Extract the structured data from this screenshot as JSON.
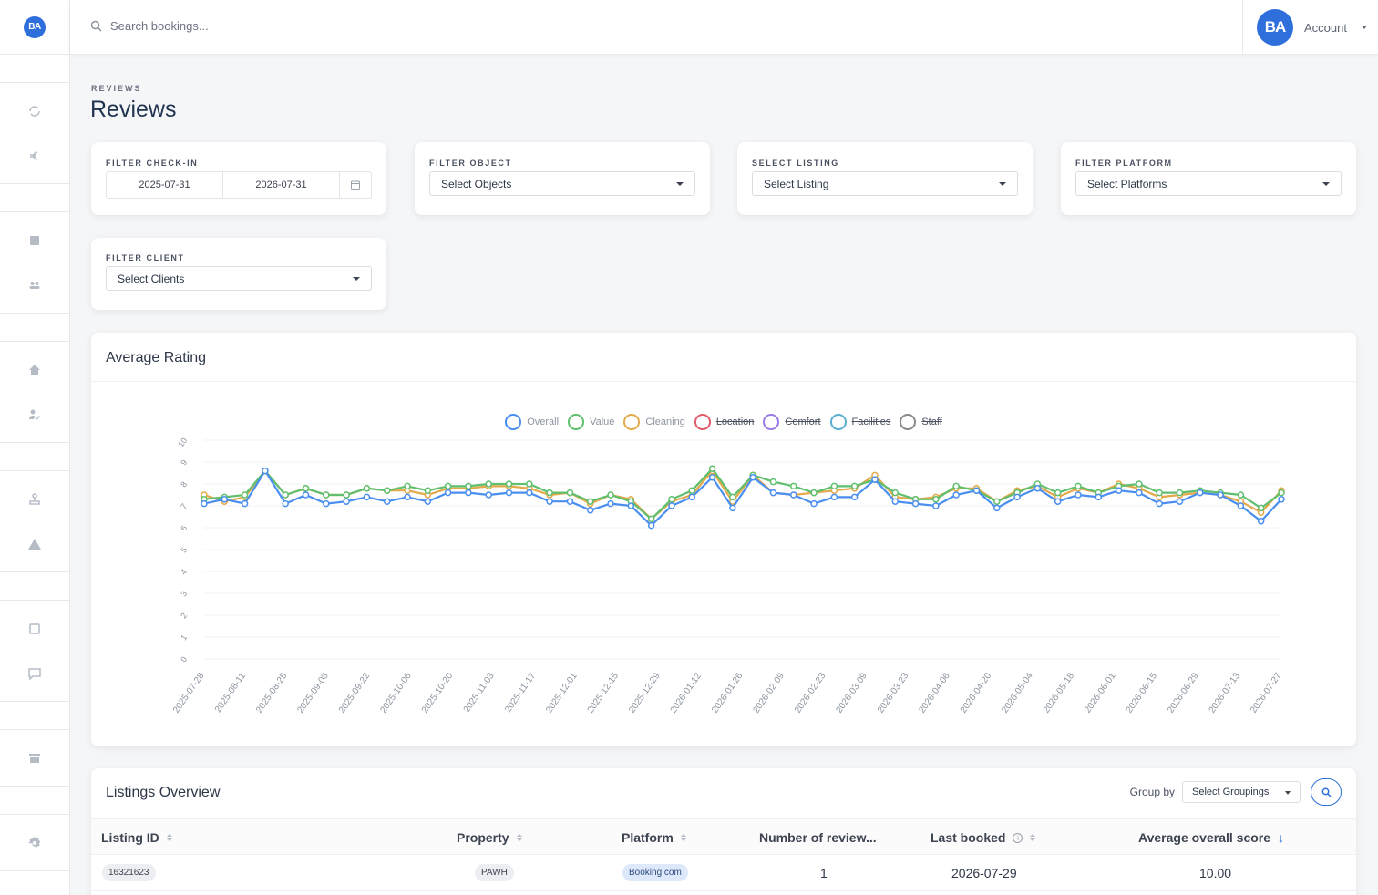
{
  "sidebar": {
    "logo": "BA"
  },
  "topbar": {
    "search_placeholder": "Search bookings...",
    "avatar": "BA",
    "account_label": "Account"
  },
  "header": {
    "eyebrow": "REVIEWS",
    "title": "Reviews"
  },
  "filters": {
    "checkin": {
      "label": "FILTER CHECK-IN",
      "start": "2025-07-31",
      "end": "2026-07-31"
    },
    "object": {
      "label": "FILTER OBJECT",
      "value": "Select Objects"
    },
    "listing": {
      "label": "SELECT LISTING",
      "value": "Select Listing"
    },
    "platform": {
      "label": "FILTER PLATFORM",
      "value": "Select Platforms"
    },
    "client": {
      "label": "FILTER CLIENT",
      "value": "Select Clients"
    }
  },
  "chart_card": {
    "title": "Average Rating"
  },
  "chart_data": {
    "type": "line",
    "title": "Average Rating",
    "ylim": [
      0,
      10
    ],
    "y_ticks": [
      "0",
      "1",
      "2",
      "3",
      "4",
      "5",
      "6",
      "7",
      "8",
      "9",
      "10"
    ],
    "grid": true,
    "legend_position": "top",
    "x_tick_labels": [
      "2025-07-28",
      "2025-08-11",
      "2025-08-25",
      "2025-09-08",
      "2025-09-22",
      "2025-10-06",
      "2025-10-20",
      "2025-11-03",
      "2025-11-17",
      "2025-12-01",
      "2025-12-15",
      "2025-12-29",
      "2026-01-12",
      "2026-01-26",
      "2026-02-09",
      "2026-02-23",
      "2026-03-09",
      "2026-03-23",
      "2026-04-06",
      "2026-04-20",
      "2026-05-04",
      "2026-05-18",
      "2026-06-01",
      "2026-06-15",
      "2026-06-29",
      "2026-07-13",
      "2026-07-27"
    ],
    "legend": [
      {
        "name": "Overall",
        "color": "#4a8ff0",
        "hidden": false
      },
      {
        "name": "Value",
        "color": "#5fbf6e",
        "hidden": false
      },
      {
        "name": "Cleaning",
        "color": "#e3a94a",
        "hidden": false
      },
      {
        "name": "Location",
        "color": "#e05a6a",
        "hidden": true
      },
      {
        "name": "Comfort",
        "color": "#9b7ce6",
        "hidden": true
      },
      {
        "name": "Facilities",
        "color": "#5aaed0",
        "hidden": true
      },
      {
        "name": "Staff",
        "color": "#8a8a8a",
        "hidden": true
      }
    ],
    "series": [
      {
        "name": "Overall",
        "color": "#4a8ff0",
        "values": [
          7.1,
          7.3,
          7.1,
          8.6,
          7.1,
          7.5,
          7.1,
          7.2,
          7.4,
          7.2,
          7.4,
          7.2,
          7.6,
          7.6,
          7.5,
          7.6,
          7.6,
          7.2,
          7.2,
          6.8,
          7.1,
          7.0,
          6.1,
          7.0,
          7.4,
          8.3,
          6.9,
          8.3,
          7.6,
          7.5,
          7.1,
          7.4,
          7.4,
          8.2,
          7.2,
          7.1,
          7.0,
          7.5,
          7.7,
          6.9,
          7.4,
          7.8,
          7.2,
          7.5,
          7.4,
          7.7,
          7.6,
          7.1,
          7.2,
          7.6,
          7.5,
          7.0,
          6.3,
          7.3
        ]
      },
      {
        "name": "Value",
        "color": "#5fbf6e",
        "values": [
          7.3,
          7.4,
          7.5,
          8.6,
          7.5,
          7.8,
          7.5,
          7.5,
          7.8,
          7.7,
          7.9,
          7.7,
          7.9,
          7.9,
          8.0,
          8.0,
          8.0,
          7.6,
          7.6,
          7.2,
          7.5,
          7.2,
          6.4,
          7.3,
          7.7,
          8.7,
          7.4,
          8.4,
          8.1,
          7.9,
          7.6,
          7.9,
          7.9,
          8.2,
          7.6,
          7.3,
          7.3,
          7.9,
          7.7,
          7.2,
          7.6,
          8.0,
          7.6,
          7.9,
          7.6,
          7.9,
          8.0,
          7.6,
          7.6,
          7.7,
          7.6,
          7.5,
          6.9,
          7.6
        ]
      },
      {
        "name": "Cleaning",
        "color": "#e3a94a",
        "values": [
          7.5,
          7.2,
          7.4,
          8.6,
          7.5,
          7.8,
          7.5,
          7.5,
          7.8,
          7.7,
          7.7,
          7.5,
          7.8,
          7.8,
          7.9,
          7.9,
          7.8,
          7.5,
          7.6,
          7.1,
          7.5,
          7.3,
          6.4,
          7.2,
          7.5,
          8.6,
          7.2,
          8.4,
          7.6,
          7.5,
          7.6,
          7.7,
          7.8,
          8.4,
          7.4,
          7.3,
          7.4,
          7.8,
          7.8,
          7.2,
          7.7,
          7.9,
          7.4,
          7.8,
          7.6,
          8.0,
          7.8,
          7.4,
          7.5,
          7.6,
          7.5,
          7.2,
          6.7,
          7.7
        ]
      }
    ]
  },
  "listings": {
    "title": "Listings Overview",
    "group_by_label": "Group by",
    "group_by_value": "Select Groupings",
    "columns": [
      "Listing ID",
      "Property",
      "Platform",
      "Number of review...",
      "Last booked",
      "Average overall score"
    ],
    "rows": [
      {
        "listing_id": "16321623",
        "property": "PAWH",
        "platform": "Booking.com",
        "num_reviews": "1",
        "last_booked": "2026-07-29",
        "avg_score": "10.00"
      }
    ]
  }
}
